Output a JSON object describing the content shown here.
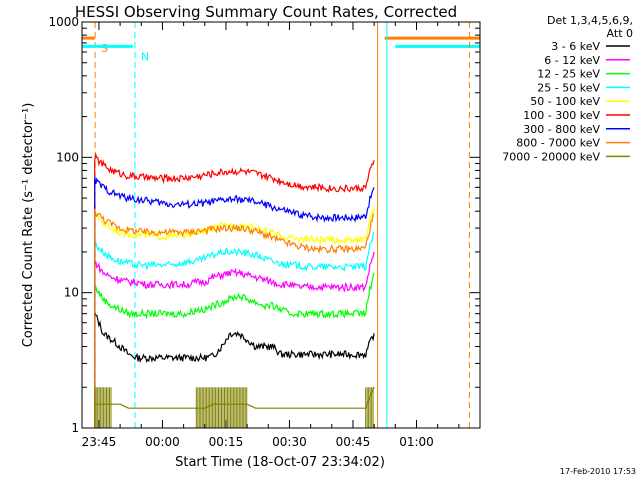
{
  "chart_data": {
    "type": "line",
    "title": "HESSI Observing Summary Count Rates, Corrected",
    "xlabel": "Start Time (18-Oct-07 23:34:02)",
    "ylabel": "Corrected Count Rate (s⁻¹ detector⁻¹)",
    "y_scale": "log",
    "ylim": [
      1,
      1000
    ],
    "y_ticks": [
      {
        "value": 1,
        "label": "1"
      },
      {
        "value": 10,
        "label": "10"
      },
      {
        "value": 100,
        "label": "100"
      },
      {
        "value": 1000,
        "label": "1000"
      }
    ],
    "xlim_minutes": [
      -19,
      75
    ],
    "x_ticks": [
      {
        "minutes": -15,
        "label": "23:45"
      },
      {
        "minutes": 0,
        "label": "00:00"
      },
      {
        "minutes": 15,
        "label": "00:15"
      },
      {
        "minutes": 30,
        "label": "00:30"
      },
      {
        "minutes": 45,
        "label": "00:45"
      },
      {
        "minutes": 60,
        "label": "01:00"
      }
    ],
    "legend_title_lines": [
      "Det 1,3,4,5,6,9,",
      "Att 0"
    ],
    "legend_position": "right",
    "footer_date": "17-Feb-2010 17:53",
    "shaded_markers": [
      {
        "label": "S",
        "color": "#ff8000",
        "minutes": -15.9,
        "span_minutes": [
          -19,
          -16
        ],
        "span_right_minutes": [
          52.5,
          75
        ],
        "level": 760
      },
      {
        "label": "N",
        "color": "#00ffff",
        "minutes": -6.5,
        "span_minutes": [
          -19,
          -7
        ],
        "span_right_minutes": [
          55,
          75
        ],
        "level": 660
      }
    ],
    "vertical_lines": [
      {
        "minutes": 50.8,
        "color": "#ff8000"
      },
      {
        "minutes": 53,
        "color": "#00ffff"
      },
      {
        "minutes": 72.5,
        "color": "#ff8000"
      }
    ],
    "x_minutes": [
      -16,
      -14,
      -12,
      -10,
      -8,
      -6,
      -4,
      -2,
      0,
      2,
      4,
      6,
      8,
      10,
      12,
      14,
      16,
      18,
      20,
      22,
      24,
      26,
      28,
      30,
      32,
      34,
      36,
      38,
      40,
      42,
      44,
      46,
      48,
      50
    ],
    "series": [
      {
        "name": "3 - 6 keV",
        "color": "#000000",
        "values": [
          7,
          5,
          4.5,
          4,
          3.5,
          3.3,
          3.3,
          3.3,
          3.3,
          3.3,
          3.3,
          3.3,
          3.3,
          3.3,
          3.4,
          4,
          5,
          5,
          4.5,
          4,
          4,
          4,
          3.5,
          3.5,
          3.5,
          3.5,
          3.5,
          3.5,
          3.5,
          3.5,
          3.5,
          3.5,
          3.5,
          5
        ]
      },
      {
        "name": "6 - 12 keV",
        "color": "#ff00ff",
        "values": [
          17,
          14,
          13,
          12.5,
          12,
          12,
          11.5,
          11.5,
          11.5,
          11.5,
          11.5,
          11.5,
          12,
          12,
          13,
          13.5,
          14,
          14,
          13.5,
          13,
          12.5,
          12,
          11.5,
          11.5,
          11,
          11,
          11,
          11,
          11,
          11,
          11,
          11,
          11,
          20
        ]
      },
      {
        "name": "12 - 25 keV",
        "color": "#00ff00",
        "values": [
          11,
          9,
          8,
          7.5,
          7,
          7,
          7,
          7,
          7,
          7,
          7,
          7,
          7.5,
          7.5,
          8,
          8.5,
          9,
          9.5,
          9,
          8.5,
          8,
          8,
          7.5,
          7,
          7,
          7,
          7,
          7,
          7,
          7,
          7,
          7,
          7,
          14
        ]
      },
      {
        "name": "25 - 50 keV",
        "color": "#00ffff",
        "values": [
          23,
          20,
          18,
          17,
          16.5,
          16,
          16,
          16,
          16,
          16,
          16.5,
          17,
          17,
          18,
          19,
          20,
          20,
          20,
          19.5,
          19,
          18,
          17,
          16.5,
          16,
          16,
          15.5,
          15.5,
          15.5,
          15.5,
          15.5,
          15.5,
          15.5,
          15.5,
          28
        ]
      },
      {
        "name": "50 - 100 keV",
        "color": "#ffff00",
        "values": [
          38,
          33,
          30,
          28,
          27,
          27,
          26.5,
          26.5,
          26,
          26,
          26.5,
          27,
          27.5,
          28.5,
          30,
          31,
          31.5,
          31.5,
          31,
          30,
          28.5,
          27.5,
          26.5,
          25.5,
          25,
          25,
          24.5,
          24.5,
          24.5,
          24.5,
          24.5,
          24.5,
          24.5,
          42
        ]
      },
      {
        "name": "100 - 300 keV",
        "color": "#ff0000",
        "values": [
          100,
          88,
          80,
          76,
          73,
          72,
          71,
          70,
          70,
          70,
          70,
          71,
          72,
          74,
          76,
          78,
          79,
          79,
          78,
          76,
          73,
          70,
          67,
          64,
          62,
          61,
          60,
          60,
          59,
          59,
          59,
          59,
          60,
          95
        ]
      },
      {
        "name": "300 - 800 keV",
        "color": "#0000ff",
        "values": [
          68,
          60,
          55,
          52,
          50,
          49,
          48,
          47,
          46,
          45,
          45,
          45,
          45.5,
          46,
          47,
          48,
          49,
          49,
          48,
          47,
          45,
          43,
          41,
          39.5,
          38,
          37,
          36.5,
          36,
          36,
          36,
          36,
          36,
          37,
          60
        ]
      },
      {
        "name": "800 - 7000 keV",
        "color": "#ff8000",
        "values": [
          40,
          35,
          32,
          30,
          29,
          28.5,
          28,
          28,
          28,
          28,
          28,
          28,
          28.5,
          29,
          29.5,
          30,
          30,
          30,
          29.5,
          28.5,
          27,
          25.5,
          24,
          23,
          22,
          21.5,
          21,
          21,
          21,
          21,
          21,
          21,
          21.5,
          38
        ]
      },
      {
        "name": "7000 - 20000 keV",
        "color": "#808000",
        "values": [
          1.5,
          1.5,
          1.5,
          1.5,
          1.4,
          1.4,
          1.4,
          1.4,
          1.4,
          1.4,
          1.4,
          1.4,
          1.4,
          1.4,
          1.5,
          1.5,
          1.5,
          1.5,
          1.5,
          1.4,
          1.4,
          1.4,
          1.4,
          1.4,
          1.4,
          1.4,
          1.4,
          1.4,
          1.4,
          1.4,
          1.4,
          1.4,
          1.4,
          2
        ]
      }
    ]
  }
}
